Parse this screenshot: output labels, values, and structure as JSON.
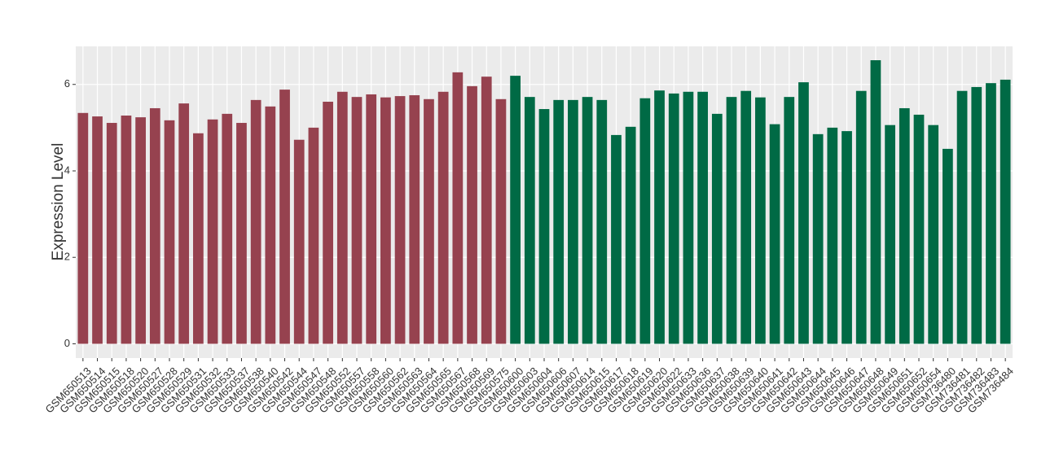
{
  "chart_data": {
    "type": "bar",
    "y_label": "Expression Level",
    "categories": [
      "GSM650513",
      "GSM650514",
      "GSM650515",
      "GSM650518",
      "GSM650520",
      "GSM650527",
      "GSM650528",
      "GSM650529",
      "GSM650531",
      "GSM650532",
      "GSM650533",
      "GSM650537",
      "GSM650538",
      "GSM650540",
      "GSM650542",
      "GSM650544",
      "GSM650547",
      "GSM650548",
      "GSM650552",
      "GSM650557",
      "GSM650558",
      "GSM650560",
      "GSM650562",
      "GSM650563",
      "GSM650564",
      "GSM650565",
      "GSM650567",
      "GSM650568",
      "GSM650569",
      "GSM650575",
      "GSM650600",
      "GSM650603",
      "GSM650604",
      "GSM650606",
      "GSM650607",
      "GSM650614",
      "GSM650615",
      "GSM650617",
      "GSM650618",
      "GSM650619",
      "GSM650620",
      "GSM650622",
      "GSM650633",
      "GSM650636",
      "GSM650637",
      "GSM650638",
      "GSM650639",
      "GSM650640",
      "GSM650641",
      "GSM650642",
      "GSM650643",
      "GSM650644",
      "GSM650645",
      "GSM650646",
      "GSM650647",
      "GSM650648",
      "GSM650649",
      "GSM650651",
      "GSM650652",
      "GSM650654",
      "GSM736480",
      "GSM736481",
      "GSM736482",
      "GSM736483",
      "GSM736484"
    ],
    "series": [
      {
        "color": "#96424f",
        "values": [
          5.34,
          5.26,
          5.11,
          5.28,
          5.24,
          5.45,
          5.17,
          5.56,
          4.87,
          5.19,
          5.32,
          5.11,
          5.64,
          5.49,
          5.88,
          4.72,
          5.0,
          5.6,
          5.83,
          5.71,
          5.77,
          5.7,
          5.73,
          5.75,
          5.66,
          5.83,
          6.28,
          5.96,
          6.18,
          5.66,
          null,
          null,
          null,
          null,
          null,
          null,
          null,
          null,
          null,
          null,
          null,
          null,
          null,
          null,
          null,
          null,
          null,
          null,
          null,
          null,
          null,
          null,
          null,
          null,
          null,
          null,
          null,
          null,
          null,
          null,
          null,
          null,
          null,
          null,
          null
        ]
      },
      {
        "color": "#006a45",
        "values": [
          null,
          null,
          null,
          null,
          null,
          null,
          null,
          null,
          null,
          null,
          null,
          null,
          null,
          null,
          null,
          null,
          null,
          null,
          null,
          null,
          null,
          null,
          null,
          null,
          null,
          null,
          null,
          null,
          null,
          null,
          6.2,
          5.71,
          5.43,
          5.64,
          5.64,
          5.71,
          5.64,
          4.83,
          5.02,
          5.68,
          5.86,
          5.79,
          5.83,
          5.83,
          5.32,
          5.71,
          5.85,
          5.7,
          5.08,
          5.71,
          6.05,
          4.85,
          5.0,
          4.92,
          5.85,
          6.56,
          5.06,
          5.45,
          5.3,
          5.06,
          4.51,
          5.85,
          5.94,
          6.03,
          6.11
        ]
      }
    ],
    "ylim": [
      -0.33,
      6.88
    ],
    "yticks": [
      0,
      2,
      4,
      6
    ],
    "grid": true
  }
}
